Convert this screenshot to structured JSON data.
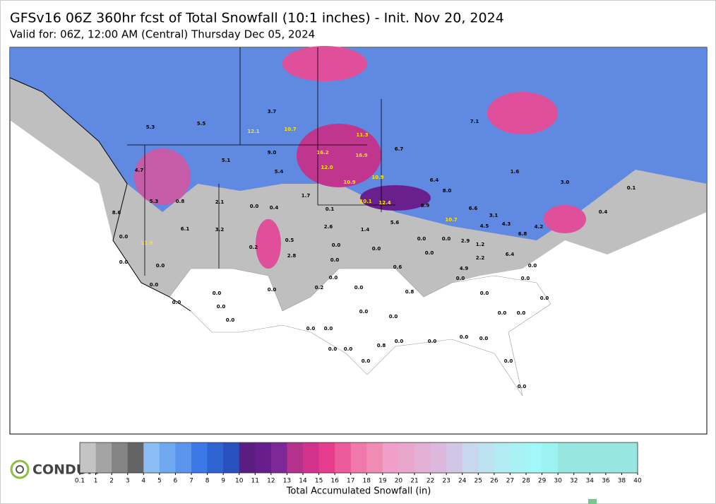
{
  "header": {
    "title": "GFSv16 06Z 360hr fcst of Total Snowfall (10:1 inches) - Init. Nov 20, 2024",
    "subtitle": "Valid for: 06Z, 12:00 AM (Central) Thursday Dec 05, 2024"
  },
  "map": {
    "station_values": [
      "5.3",
      "5.5",
      "3.7",
      "5.1",
      "5.4",
      "9.0",
      "4.7",
      "5.3",
      "0.8",
      "7.1",
      "6.7",
      "6.4",
      "8.0",
      "6.6",
      "8.9",
      "1.7",
      "0.1",
      "2.6",
      "1.4",
      "5.6",
      "0.0",
      "0.4",
      "0.5",
      "2.8",
      "0.0",
      "0.0",
      "0.6",
      "0.0",
      "0.0",
      "0.2",
      "0.0",
      "0.0",
      "0.0",
      "0.0",
      "0.0",
      "0.0",
      "0.0",
      "0.0",
      "0.0",
      "0.0",
      "0.0",
      "0.0",
      "0.0",
      "0.0",
      "0.8",
      "0.0",
      "0.0",
      "0.0",
      "0.0",
      "6.4",
      "4.9",
      "2.9",
      "1.2",
      "2.2",
      "0.0",
      "0.0",
      "0.0",
      "4.5",
      "4.3",
      "6.8",
      "4.2",
      "3.1",
      "0.1",
      "3.0",
      "0.4",
      "0.0",
      "0.0",
      "0.0",
      "0.8",
      "0.0",
      "0.0",
      "0.0",
      "0.0",
      "0.0",
      "0.0",
      "0.0",
      "0.0",
      "0.0",
      "3.2",
      "6.1",
      "8.6",
      "0.2",
      "2.1",
      "1.6"
    ],
    "highlight_values": [
      "12.1",
      "10.7",
      "11.3",
      "16.2",
      "16.9",
      "12.0",
      "10.9",
      "10.9",
      "10.1",
      "12.4",
      "10.7",
      "11.9"
    ]
  },
  "colorbar": {
    "label": "Total Accumulated Snowfall (in)",
    "ticks": [
      0.1,
      1,
      2,
      3,
      4,
      5,
      6,
      7,
      8,
      9,
      10,
      11,
      12,
      13,
      14,
      15,
      16,
      17,
      18,
      19,
      20,
      21,
      22,
      23,
      24,
      25,
      26,
      27,
      28,
      29,
      30,
      32,
      34,
      36,
      38,
      40
    ],
    "colors": [
      "#c4c4c4",
      "#a4a4a4",
      "#848484",
      "#646464",
      "#8cbcf4",
      "#70a8f0",
      "#5a94ec",
      "#3c78e6",
      "#2d64d2",
      "#2850be",
      "#5a1e82",
      "#661e8c",
      "#7d2896",
      "#b4328c",
      "#d2328c",
      "#e63c8c",
      "#eb5a9b",
      "#f078aa",
      "#f08cb4",
      "#f0a0c8",
      "#e8a8cc",
      "#e2b0d4",
      "#dcb8dc",
      "#d2c6e6",
      "#c8d6ee",
      "#bce2f0",
      "#b0ecf2",
      "#a8f2f4",
      "#a2f8f8",
      "#9cf2f0",
      "#98e6e0",
      "#98e6e0",
      "#98e6e0",
      "#98e6e0",
      "#98e6e0"
    ]
  },
  "logo": {
    "text": "CONDUIT"
  }
}
